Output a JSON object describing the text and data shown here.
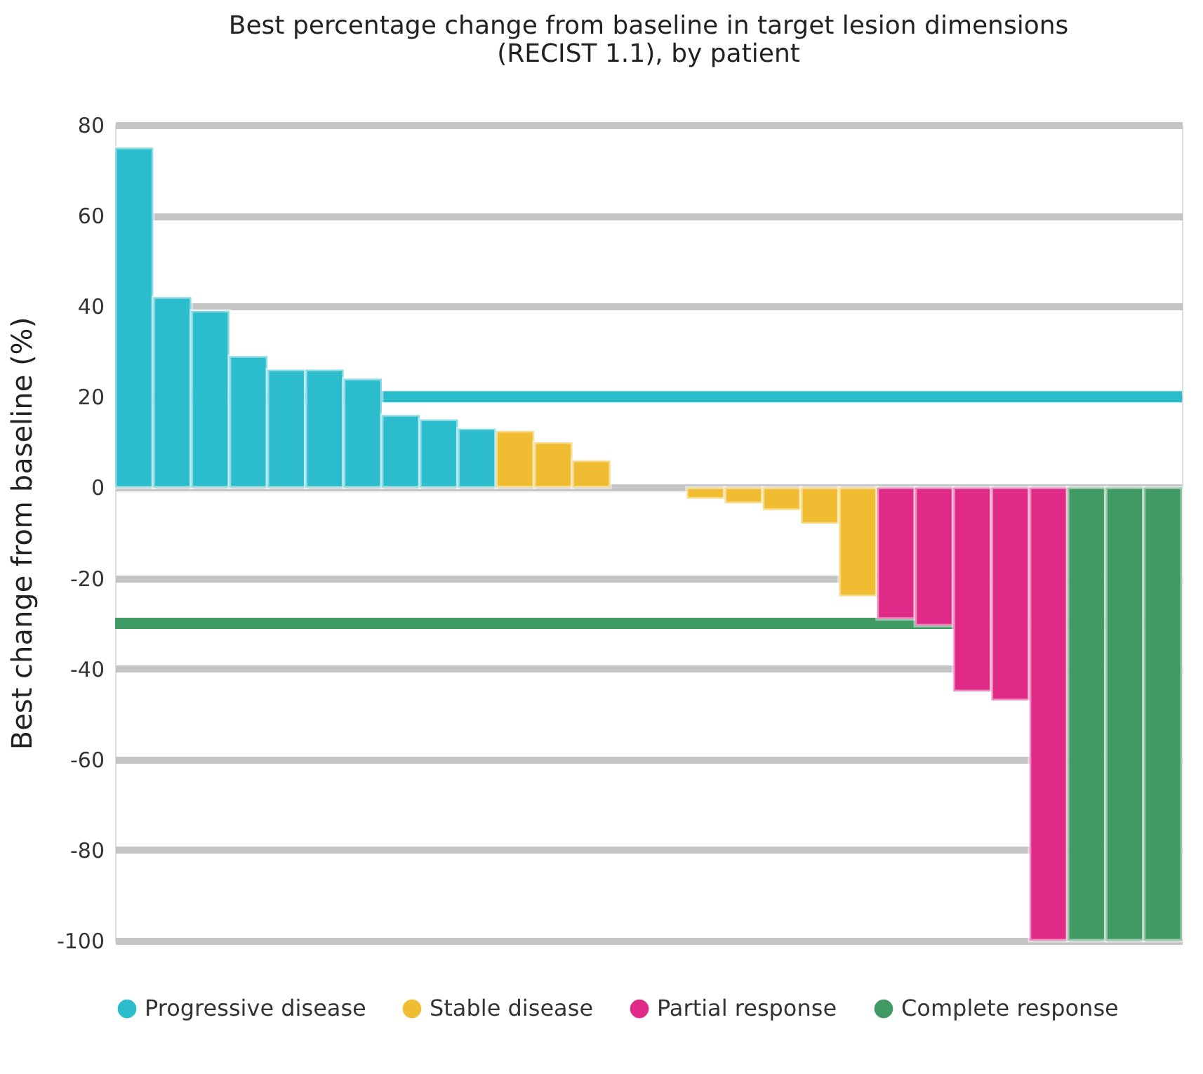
{
  "chart_data": {
    "type": "bar",
    "title": [
      "Best percentage change from baseline in target lesion dimensions",
      "(RECIST 1.1), by patient"
    ],
    "ylabel": "Best change from baseline (%)",
    "categories": [
      null,
      null,
      null,
      null,
      null,
      null,
      null,
      null,
      null,
      null,
      null,
      null,
      null,
      null,
      null,
      null,
      null,
      null,
      null,
      null,
      null,
      null,
      null,
      null,
      null,
      null,
      null,
      null
    ],
    "series": [
      {
        "name": "Progressive disease",
        "color": "#2bbdcc",
        "values": [
          75,
          42,
          39,
          29,
          26,
          26,
          24,
          16,
          15,
          13,
          null,
          null,
          null,
          null,
          null,
          null,
          null,
          null,
          null,
          null,
          null,
          null,
          null,
          null,
          null,
          null,
          null,
          null
        ]
      },
      {
        "name": "Stable disease",
        "color": "#f0bd32",
        "values": [
          null,
          null,
          null,
          null,
          null,
          null,
          null,
          null,
          null,
          null,
          12.5,
          10,
          6,
          null,
          null,
          -2.5,
          -3.5,
          -5,
          -8,
          -24,
          null,
          null,
          null,
          null,
          null,
          null,
          null,
          null
        ]
      },
      {
        "name": "Partial response",
        "color": "#e02a87",
        "values": [
          null,
          null,
          null,
          null,
          null,
          null,
          null,
          null,
          null,
          null,
          null,
          null,
          null,
          null,
          null,
          null,
          null,
          null,
          null,
          null,
          -29,
          -30.5,
          -45,
          -47,
          -100,
          null,
          null,
          null
        ]
      },
      {
        "name": "Complete response",
        "color": "#419a63",
        "values": [
          null,
          null,
          null,
          null,
          null,
          null,
          null,
          null,
          null,
          null,
          null,
          null,
          null,
          null,
          null,
          null,
          null,
          null,
          null,
          null,
          null,
          null,
          null,
          null,
          null,
          -100,
          -100,
          -100
        ]
      }
    ],
    "ylim": [
      -100,
      80
    ],
    "yticks": [
      -100,
      -80,
      -60,
      -40,
      -20,
      0,
      20,
      40,
      60,
      80
    ],
    "ref_lines": [
      {
        "axis": "y",
        "value": 20,
        "color": "#2bbdcc"
      },
      {
        "axis": "y",
        "value": -30,
        "color": "#419a63"
      }
    ],
    "grid": "y",
    "legend": "bottom",
    "tick_labels": "y"
  }
}
